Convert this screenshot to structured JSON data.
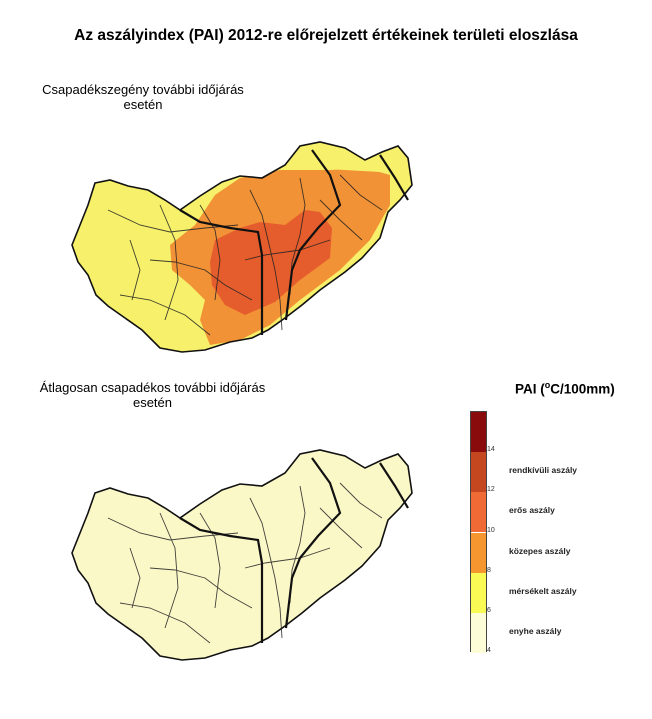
{
  "title": "Az aszályindex (PAI) 2012-re előrejelzett értékeinek területi eloszlása",
  "maps": [
    {
      "label_line1": "Csapadékszegény további időjárás",
      "label_line2": "esetén"
    },
    {
      "label_line1": "Átlagosan csapadékos további időjárás",
      "label_line2": "esetén"
    }
  ],
  "legend": {
    "title_prefix": "PAI (",
    "title_sup": "o",
    "title_suffix": "C/100mm)",
    "ticks": [
      "14",
      "12",
      "10",
      "8",
      "6",
      "4"
    ],
    "categories": [
      {
        "label": "rendkívüli aszály",
        "range": [
          12,
          14
        ],
        "color": "#c4471f"
      },
      {
        "label": "erős aszály",
        "range": [
          10,
          12
        ],
        "color": "#f06a35"
      },
      {
        "label": "közepes aszály",
        "range": [
          8,
          10
        ],
        "color": "#f5962f"
      },
      {
        "label": "mérsékelt aszály",
        "range": [
          6,
          8
        ],
        "color": "#fafa55"
      },
      {
        "label": "enyhe aszály",
        "range": [
          4,
          6
        ],
        "color": "#fdfdd8"
      }
    ],
    "top_band": {
      "range": [
        14,
        16
      ],
      "color": "#8a0b0b"
    }
  },
  "colors": {
    "extreme": "#8a0b0b",
    "very_strong": "#c4471f",
    "strong": "#e55d2c",
    "moderate": "#f29236",
    "mild": "#f6f06a",
    "light": "#fbf8c8",
    "outside": "#ffffff",
    "borders": "#111111"
  }
}
